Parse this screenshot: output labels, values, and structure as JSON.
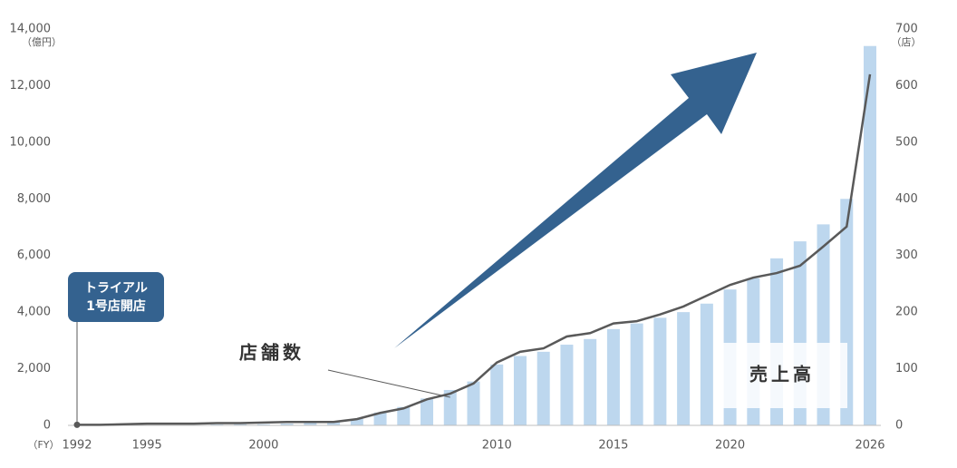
{
  "chart_data": {
    "type": "bar-line",
    "categories": [
      "1992",
      null,
      null,
      "1995",
      null,
      null,
      null,
      null,
      "2000",
      null,
      null,
      null,
      null,
      null,
      null,
      null,
      null,
      null,
      "2010",
      null,
      null,
      null,
      null,
      "2015",
      null,
      null,
      null,
      null,
      "2020",
      null,
      null,
      null,
      null,
      null,
      "2026"
    ],
    "series": [
      {
        "name": "売上高",
        "type": "bar",
        "color": "#bdd7ee",
        "values": [
          0,
          0,
          0,
          0,
          0,
          20,
          30,
          40,
          40,
          60,
          100,
          130,
          230,
          450,
          650,
          950,
          1250,
          1550,
          2150,
          2450,
          2600,
          2850,
          3050,
          3400,
          3600,
          3800,
          4000,
          4300,
          4800,
          5200,
          5900,
          6500,
          7100,
          8000,
          13400
        ]
      },
      {
        "name": "店舗数",
        "type": "line",
        "axis": "y2",
        "color": "#595959",
        "values": [
          1,
          1,
          2,
          3,
          3,
          3,
          4,
          4,
          5,
          6,
          6,
          6,
          11,
          22,
          30,
          46,
          56,
          74,
          111,
          130,
          136,
          157,
          163,
          180,
          184,
          196,
          210,
          229,
          248,
          261,
          269,
          282,
          316,
          351,
          620
        ]
      }
    ],
    "ylim": [
      0,
      14000
    ],
    "yticks": [
      0,
      {
        "value": 2000,
        "label": "2,000"
      },
      {
        "value": 4000,
        "label": "4,000"
      },
      {
        "value": 6000,
        "label": "6,000"
      },
      {
        "value": 8000,
        "label": "8,000"
      },
      {
        "value": 10000,
        "label": "10,000"
      },
      {
        "value": 12000,
        "label": "12,000"
      },
      {
        "value": 14000,
        "label": "14,000"
      }
    ],
    "y2lim": [
      0,
      700
    ],
    "y2ticks": [
      0,
      100,
      200,
      300,
      400,
      500,
      600,
      700
    ],
    "y_unit": "（億円）",
    "y2_unit": "（店）",
    "x_unit": "（FY）",
    "callout": [
      "トライアル",
      "1号店開店"
    ]
  }
}
